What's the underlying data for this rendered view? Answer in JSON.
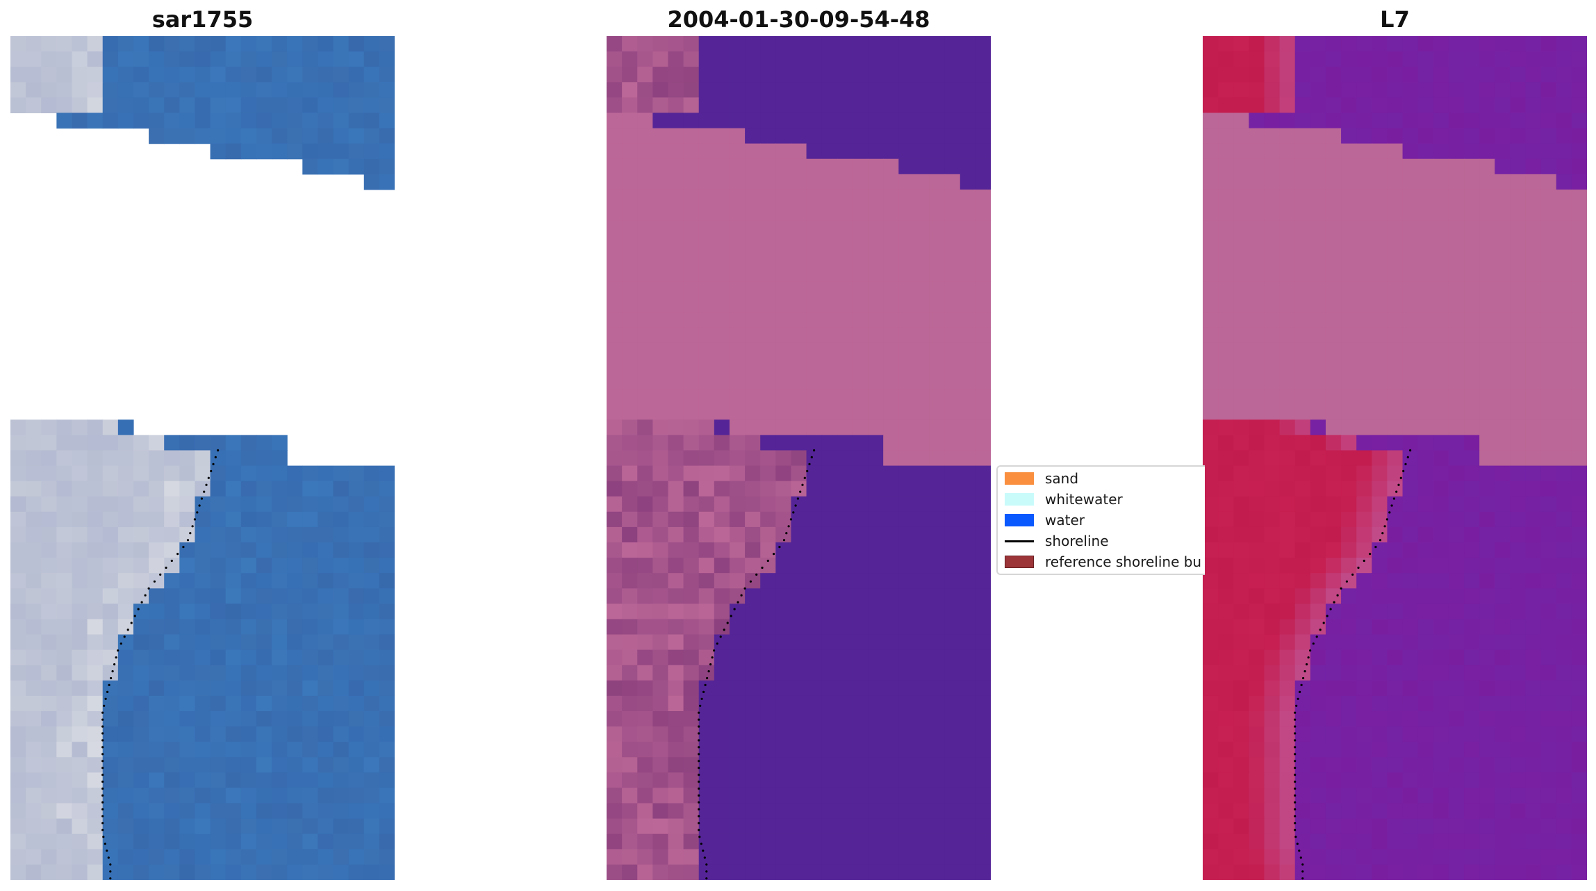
{
  "figure": {
    "panels": [
      {
        "title": "sar1755",
        "kind": "rgb"
      },
      {
        "title": "2004-01-30-09-54-48",
        "kind": "classified"
      },
      {
        "title": "L7",
        "kind": "index"
      }
    ]
  },
  "legend": {
    "items": [
      {
        "label": "sand",
        "color": "#f98f3f",
        "kind": "patch"
      },
      {
        "label": "whitewater",
        "color": "#c9fbfb",
        "kind": "patch"
      },
      {
        "label": "water",
        "color": "#0a59ff",
        "kind": "patch"
      },
      {
        "label": "shoreline",
        "color": "#000000",
        "kind": "line"
      },
      {
        "label": "reference shoreline bu",
        "color": "#9b3538",
        "kind": "patch"
      }
    ]
  },
  "colors": {
    "rgb_water": "#3b6fb0",
    "rgb_sand": "#bcc2d4",
    "cls_water": "#552597",
    "cls_land": "#bb6797",
    "cls_nodata": "#bb6797",
    "idx_water": "#7a1ea0",
    "idx_land": "#c21c4e",
    "idx_nodata": "#bb6797"
  }
}
